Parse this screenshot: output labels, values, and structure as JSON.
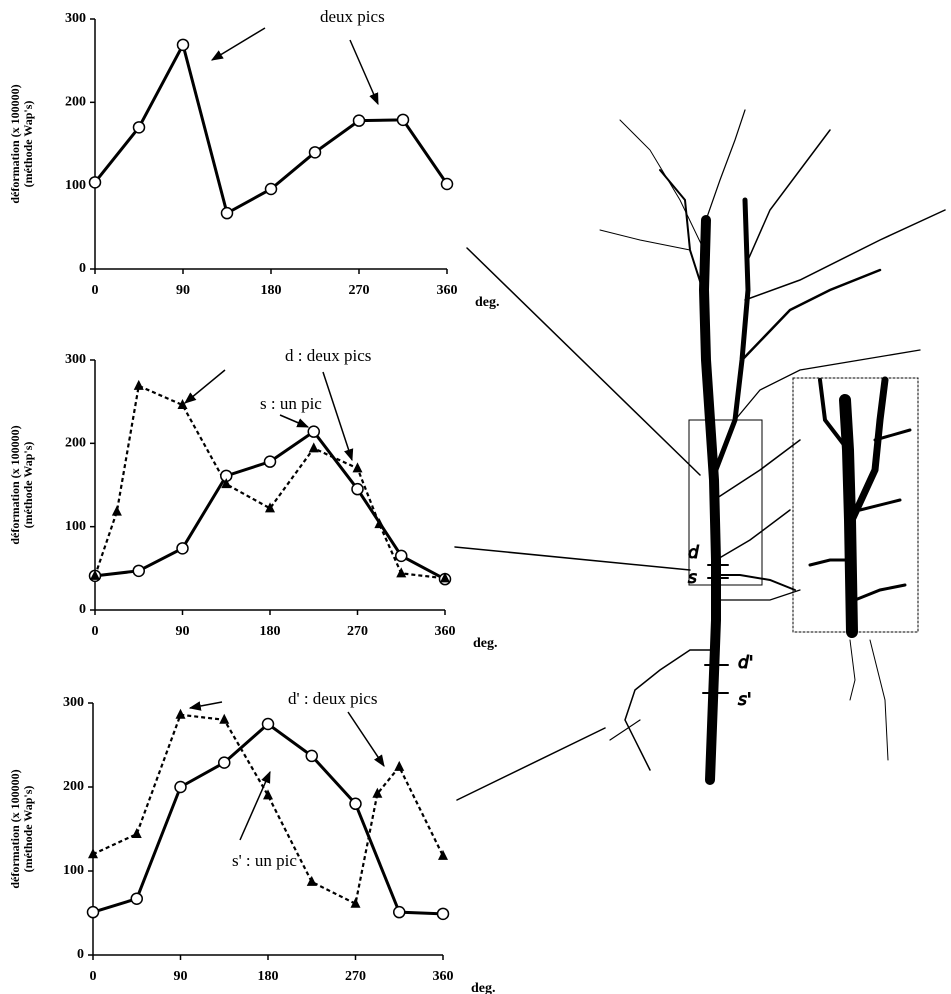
{
  "chart_data": [
    {
      "type": "line",
      "xlabel": "deg.",
      "ylabel": [
        "déformation (x 100000)",
        "(méthode Wap's)"
      ],
      "xlim": [
        0,
        360
      ],
      "ylim": [
        0,
        300
      ],
      "xticks": [
        0,
        90,
        180,
        270,
        360
      ],
      "yticks": [
        0,
        100,
        200,
        300
      ],
      "annotations": [
        "deux pics"
      ],
      "series": [
        {
          "color": "#000000",
          "dashed": false,
          "marker": "circle",
          "x": [
            0,
            45,
            90,
            135,
            180,
            225,
            270,
            315,
            360
          ],
          "values": [
            104,
            170,
            269,
            67,
            96,
            140,
            178,
            179,
            102
          ]
        }
      ]
    },
    {
      "type": "line",
      "xlabel": "deg.",
      "ylabel": [
        "déformation (x 100000)",
        "(méthode Wap's)"
      ],
      "xlim": [
        0,
        360
      ],
      "ylim": [
        0,
        300
      ],
      "xticks": [
        0,
        90,
        180,
        270,
        360
      ],
      "yticks": [
        0,
        100,
        200,
        300
      ],
      "annotations": [
        "d : deux pics",
        "s : un pic"
      ],
      "series": [
        {
          "color": "#000000",
          "dashed": false,
          "marker": "circle",
          "x": [
            0,
            45,
            90,
            135,
            180,
            225,
            270,
            315,
            360
          ],
          "values": [
            41,
            47,
            74,
            161,
            178,
            214,
            145,
            65,
            37
          ]
        },
        {
          "color": "#000000",
          "dashed": true,
          "marker": "triangle",
          "x": [
            0,
            22.5,
            45,
            90,
            135,
            180,
            225,
            270,
            292.5,
            315,
            360
          ],
          "values": [
            41,
            118,
            269,
            246,
            151,
            122,
            194,
            170,
            103,
            44,
            38
          ]
        }
      ]
    },
    {
      "type": "line",
      "xlabel": "deg.",
      "ylabel": [
        "déformation (x 100000)",
        "(méthode Wap's)"
      ],
      "xlim": [
        0,
        360
      ],
      "ylim": [
        0,
        300
      ],
      "xticks": [
        0,
        90,
        180,
        270,
        360
      ],
      "yticks": [
        0,
        100,
        200,
        300
      ],
      "annotations": [
        "d' : deux pics",
        "s' : un pic"
      ],
      "series": [
        {
          "color": "#000000",
          "dashed": false,
          "marker": "circle",
          "x": [
            0,
            45,
            90,
            135,
            180,
            225,
            270,
            315,
            360
          ],
          "values": [
            51,
            67,
            200,
            229,
            275,
            237,
            180,
            51,
            49
          ]
        },
        {
          "color": "#000000",
          "dashed": true,
          "marker": "triangle",
          "x": [
            0,
            45,
            90,
            135,
            180,
            225,
            270,
            292.5,
            315,
            360
          ],
          "values": [
            120,
            144,
            286,
            280,
            190,
            87,
            61,
            192,
            224,
            118
          ]
        }
      ]
    }
  ],
  "drawing": {
    "labels": [
      "d",
      "s",
      "d'",
      "s'"
    ]
  }
}
